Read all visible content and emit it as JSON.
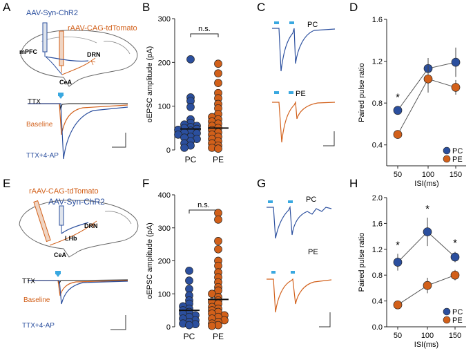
{
  "colors": {
    "pc": "#2b4f9e",
    "pe": "#d2601a",
    "black": "#222222",
    "ttx": "#111111",
    "blue_stim": "#39a8e0"
  },
  "panel_letters": [
    "A",
    "B",
    "C",
    "D",
    "E",
    "F",
    "G",
    "H"
  ],
  "schematic_top": {
    "virus1": "AAV-Syn-ChR2",
    "virus2": "rAAV-CAG-tdTomato",
    "regions": [
      "mPFC",
      "DRN",
      "CeA"
    ]
  },
  "schematic_bottom": {
    "virus1": "rAAV-CAG-tdTomato",
    "virus2": "AAV-Syn-ChR2",
    "regions": [
      "DRN",
      "LHb",
      "CeA"
    ]
  },
  "trace_labels": {
    "ttx": "TTX",
    "baseline": "Baseline",
    "ttx_4ap": "TTX+4-AP"
  },
  "group_labels": {
    "pc": "PC",
    "pe": "PE"
  },
  "chart_data": [
    {
      "panel": "B",
      "type": "scatter",
      "ylabel": "oEPSC amplitude (pA)",
      "ylim": [
        0,
        300
      ],
      "yticks": [
        0,
        100,
        200,
        300
      ],
      "categories": [
        "PC",
        "PE"
      ],
      "annotation": "n.s.",
      "series": [
        {
          "name": "PC",
          "mean": 48,
          "values": [
            207,
            120,
            112,
            98,
            70,
            62,
            58,
            55,
            52,
            50,
            48,
            46,
            44,
            40,
            38,
            35,
            30,
            28,
            25,
            20,
            15,
            10,
            5
          ]
        },
        {
          "name": "PE",
          "mean": 50,
          "values": [
            197,
            175,
            153,
            130,
            118,
            105,
            95,
            82,
            75,
            70,
            65,
            60,
            55,
            50,
            45,
            40,
            35,
            30,
            25,
            20,
            15,
            10,
            5,
            3
          ]
        }
      ]
    },
    {
      "panel": "D",
      "type": "line",
      "ylabel": "Paired pulse ratio",
      "xlabel": "ISI(ms)",
      "x": [
        50,
        100,
        150
      ],
      "ylim": [
        0.2,
        1.6
      ],
      "yticks": [
        0.4,
        0.8,
        1.2,
        1.6
      ],
      "significance": [
        "*",
        "",
        ""
      ],
      "series": [
        {
          "name": "PC",
          "values": [
            0.73,
            1.13,
            1.19
          ],
          "errors": [
            0.04,
            0.1,
            0.14
          ]
        },
        {
          "name": "PE",
          "values": [
            0.5,
            1.03,
            0.95
          ],
          "errors": [
            0.04,
            0.13,
            0.07
          ]
        }
      ],
      "legend": [
        "PC",
        "PE"
      ]
    },
    {
      "panel": "F",
      "type": "scatter",
      "ylabel": "oEPSC amplitude (pA)",
      "ylim": [
        0,
        400
      ],
      "yticks": [
        0,
        100,
        200,
        300,
        400
      ],
      "categories": [
        "PC",
        "PE"
      ],
      "annotation": "n.s.",
      "series": [
        {
          "name": "PC",
          "mean": 50,
          "values": [
            170,
            140,
            115,
            95,
            80,
            70,
            62,
            55,
            50,
            45,
            40,
            35,
            30,
            25,
            20,
            15,
            10,
            8,
            5
          ]
        },
        {
          "name": "PE",
          "mean": 83,
          "values": [
            345,
            325,
            260,
            235,
            200,
            185,
            165,
            150,
            135,
            120,
            110,
            100,
            90,
            80,
            75,
            70,
            60,
            55,
            50,
            45,
            40,
            35,
            30,
            25,
            20,
            15,
            10,
            5,
            3
          ]
        }
      ]
    },
    {
      "panel": "H",
      "type": "line",
      "ylabel": "Paired pulse ratio",
      "xlabel": "ISI(ms)",
      "x": [
        50,
        100,
        150
      ],
      "ylim": [
        0,
        2.0
      ],
      "yticks": [
        0.0,
        0.4,
        0.8,
        1.2,
        1.6,
        2.0
      ],
      "significance": [
        "*",
        "*",
        "*"
      ],
      "series": [
        {
          "name": "PC",
          "values": [
            1.0,
            1.47,
            1.08
          ],
          "errors": [
            0.13,
            0.22,
            0.08
          ]
        },
        {
          "name": "PE",
          "values": [
            0.34,
            0.64,
            0.8
          ],
          "errors": [
            0.04,
            0.12,
            0.08
          ]
        }
      ],
      "legend": [
        "PC",
        "PE"
      ]
    }
  ]
}
